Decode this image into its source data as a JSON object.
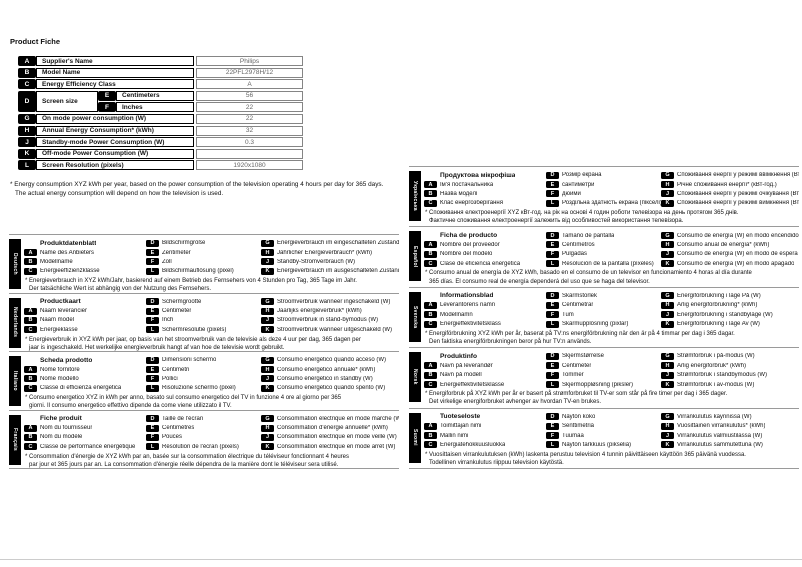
{
  "page": {
    "title": "Product Fiche",
    "footnote1": "* Energy consumption XYZ kWh per year, based on the power consumption of the television operating 4 hours per day for 365 days.",
    "footnote2": "The actual energy consumption will depend on how the television is used."
  },
  "product_table": {
    "rows": [
      {
        "key": "A",
        "label": "Supplier's Name",
        "value": "Philips"
      },
      {
        "key": "B",
        "label": "Model Name",
        "value": "22PFL2978H/12"
      },
      {
        "key": "C",
        "label": "Energy Efficiency Class",
        "value": "A"
      },
      {
        "key": "D",
        "label": "Screen size",
        "sub": [
          {
            "key": "E",
            "label": "Centimeters",
            "value": "56"
          },
          {
            "key": "F",
            "label": "Inches",
            "value": "22"
          }
        ]
      },
      {
        "key": "G",
        "label": "On mode power consumption (W)",
        "value": "22"
      },
      {
        "key": "H",
        "label": "Annual Energy Consumption* (kWh)",
        "value": "32"
      },
      {
        "key": "J",
        "label": "Standby-mode Power Consumption (W)",
        "value": "0.3"
      },
      {
        "key": "K",
        "label": "Off-mode Power Consumption (W)",
        "value": ""
      },
      {
        "key": "L",
        "label": "Screen Resolution (pixels)",
        "value": "1920x1080"
      }
    ]
  },
  "row_layout": [
    [
      "",
      "D",
      "G"
    ],
    [
      "A",
      "E",
      "H"
    ],
    [
      "B",
      "F",
      "J"
    ],
    [
      "C",
      "L",
      "K"
    ]
  ],
  "languages": {
    "left": [
      {
        "lang": "Deutsch",
        "title": "Produktdatenblatt",
        "entries": {
          "A": "Name des Anbieters",
          "B": "Modellname",
          "C": "Energieeffizienzklasse",
          "D": "Bildschirmgröße",
          "E": "Zentimeter",
          "F": "Zoll",
          "L": "Bildschirmauflösung (pixel)",
          "G": "Energieverbrauch im eingeschalteten Zustand (W)",
          "H": "Jährlicher Energieverbrauch* (kWh)",
          "J": "Standby-Stromverbrauch (W)",
          "K": "Energieverbrauch im ausgeschalteten Zustand (W)"
        },
        "footnote1": "* Energieverbrauch in XYZ kWh/Jahr, basierend auf einem Betrieb des Fernsehers von 4 Stunden pro Tag, 365 Tage im Jahr.",
        "footnote2": "Der tatsächliche Wert ist abhängig von der Nutzung des Fernsehers."
      },
      {
        "lang": "Nederlands",
        "title": "Productkaart",
        "entries": {
          "A": "Naam leverancier",
          "B": "Naam model",
          "C": "Energieklasse",
          "D": "Schermgrootte",
          "E": "Centimeter",
          "F": "Inch",
          "L": "Schermresolutie (pixels)",
          "G": "Stroomverbruik wanneer ingeschakeld (W)",
          "H": "Jaarlijks energieverbruik* (kWh)",
          "J": "Stroomverbruik in stand-bymodus (W)",
          "K": "Stroomverbruik wanneer uitgeschakeld (W)"
        },
        "footnote1": "* Energieverbruik in XYZ kWh per jaar, op basis van het stroomverbruik van de televisie als deze 4 uur per dag, 365 dagen per",
        "footnote2": "jaar is ingeschakeld. Het werkelijke energieverbruik hangt af van hoe de televisie wordt gebruikt."
      },
      {
        "lang": "Italiano",
        "title": "Scheda prodotto",
        "entries": {
          "A": "Nome fornitore",
          "B": "Nome modello",
          "C": "Classe di efficienza energetica",
          "D": "Dimensioni schermo",
          "E": "Centimetri",
          "F": "Pollici",
          "L": "Risoluzione schermo (pixel)",
          "G": "Consumo energetico quando acceso (W)",
          "H": "Consumo energetico annuale* (kWh)",
          "J": "Consumo energetico in standby (W)",
          "K": "Consumo energetico quando spento (W)"
        },
        "footnote1": "* Consumo energetico XYZ in kWh per anno, basato sul consumo energetico del TV in funzione 4 ore al giorno per 365",
        "footnote2": "giorni. Il consumo energetico effettivo dipende da come viene utilizzato il TV."
      },
      {
        "lang": "Français",
        "title": "Fiche produit",
        "entries": {
          "A": "Nom du fournisseur",
          "B": "Nom du modèle",
          "C": "Classe de performance énergétique",
          "D": "Taille de l'écran",
          "E": "Centimètres",
          "F": "Pouces",
          "L": "Résolution de l'écran (pixels)",
          "G": "Consommation électrique en mode marche (W)",
          "H": "Consommation d'énergie annuelle* (kWh)",
          "J": "Consommation électrique en mode veille (W)",
          "K": "Consommation électrique en mode arrêt (W)"
        },
        "footnote1": "* Consommation d'énergie de XYZ kWh par an, basée sur la consommation électrique du téléviseur fonctionnant 4 heures",
        "footnote2": "par jour et 365 jours par an. La consommation d'énergie réelle dépendra de la manière dont le téléviseur sera utilisé."
      }
    ],
    "right": [
      {
        "lang": "Українська",
        "title": "Продуктова мікрофіша",
        "entries": {
          "A": "Ім'я постачальника",
          "B": "Назва моделі",
          "C": "Клас енергозберігання",
          "D": "Розмір екрана",
          "E": "сантиметри",
          "F": "дюйми",
          "L": "Роздільна здатність екрана (пікселі)",
          "G": "Споживання енергії у режимі ввімкнення (Вт)",
          "H": "Річне споживання енергії* (кВт-год.)",
          "J": "Споживання енергії у режимі очікування (Вт)",
          "K": "Споживання енергії у режимі вимкнення (Вт)"
        },
        "footnote1": "* Споживання електроенергії XYZ кВт-год. на рік на основі 4 годин роботи телевізора на день протягом 365 днів.",
        "footnote2": "Фактичне споживання електроенергії залежить від особливостей використання телевізора."
      },
      {
        "lang": "Español",
        "title": "Ficha de producto",
        "entries": {
          "A": "Nombre del proveedor",
          "B": "Nombre del modelo",
          "C": "Clase de eficiencia energética",
          "D": "Tamaño de pantalla",
          "E": "Centímetros",
          "F": "Pulgadas",
          "L": "Resolución de la pantalla (píxeles)",
          "G": "Consumo de energía (W) en modo encendido",
          "H": "Consumo anual de energía* (kWh)",
          "J": "Consumo de energía (W) en modo de espera",
          "K": "Consumo de energía (W) en modo apagado"
        },
        "footnote1": "* Consumo anual de energía de XYZ kWh, basado en el consumo de un televisor en funcionamiento 4 horas al día durante",
        "footnote2": "365 días. El consumo real de energía dependerá del uso que se haga del televisor."
      },
      {
        "lang": "Svenska",
        "title": "Informationsblad",
        "entries": {
          "A": "Leverantörens namn",
          "B": "Modellnamn",
          "C": "Energieffektivitetsklass",
          "D": "Skärmstorlek",
          "E": "Centimetrar",
          "F": "Tum",
          "L": "Skärmupplösning (pixlar)",
          "G": "Energiförbrukning i läge På (W)",
          "H": "Årlig energiförbrukning* (kWh)",
          "J": "Energiförbrukning i standbyläge (W)",
          "K": "Energiförbrukning i läge Av (W)"
        },
        "footnote1": "* Energiförbrukning XYZ kWh per år, baserat på TV:ns energiförbrukning när den är på 4 timmar per dag i 365 dagar.",
        "footnote2": "Den faktiska energiförbrukningen beror på hur TV:n används."
      },
      {
        "lang": "Norsk",
        "title": "Produktinfo",
        "entries": {
          "A": "Navn på leverandør",
          "B": "Navn på modell",
          "C": "Energieffektivitetsklasse",
          "D": "Skjermstørrelse",
          "E": "Centimeter",
          "F": "Tommer",
          "L": "Skjermoppløsning (piksler)",
          "G": "Strømforbruk i på-modus (W)",
          "H": "Årlig energiforbruk* (kWh)",
          "J": "Strømforbruk i standbymodus (W)",
          "K": "Strømforbruk i av-modus (W)"
        },
        "footnote1": "* Energiforbruk på XYZ kWh per år er basert på strømforbruket til TV-er som står på fire timer per dag i 365 dager.",
        "footnote2": "Det virkelige energiforbruket avhenger av hvordan TV-en brukes."
      },
      {
        "lang": "Suomi",
        "title": "Tuoteseloste",
        "entries": {
          "A": "Toimittajan nimi",
          "B": "Mallin nimi",
          "C": "Energiatehokkuusluokka",
          "D": "Näytön koko",
          "E": "Senttimetriä",
          "F": "Tuumaa",
          "L": "Näytön tarkkuus (pikseliä)",
          "G": "Virrankulutus käynnissä (W)",
          "H": "Vuosittainen virrankulutus* (kWh)",
          "J": "Virrankulutus valmiustilassa (W)",
          "K": "Virrankulutus sammutettuna (W)"
        },
        "footnote1": "* Vuosittaisen virrankulutuksen (kWh) laskenta perustuu television 4 tunnin päivittäiseen käyttöön 365 päivänä vuodessa.",
        "footnote2": "Todellinen virrankulutus riippuu television käytöstä."
      }
    ]
  }
}
